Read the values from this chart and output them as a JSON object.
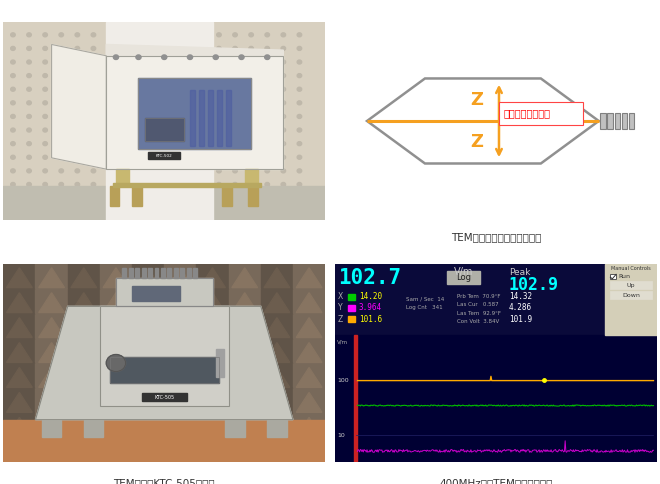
{
  "background_color": "#ffffff",
  "fig_width": 6.6,
  "fig_height": 4.84,
  "dpi": 100,
  "captions": [
    "TEMセル：KTC-502（特）",
    "TEMセル内の電界方向模式図",
    "TEMセル：KTC-505（特）",
    "400MHzでのTEMモードの確認"
  ],
  "diagram": {
    "hex_outline_color": "#888888",
    "arrow_color": "#f5a020",
    "label_z_color": "#f5a020",
    "label_electric_color": "#ff0000",
    "label_z_text": "Z",
    "label_electric_text": "セル内の電界方向"
  },
  "measurement": {
    "bg_color": "#000033",
    "graph_bg": "#000044",
    "header_bg": "#1a1a4a",
    "main_value": "102.7",
    "main_value_color": "#00ffff",
    "unit": "V/m",
    "peak_label": "Peak",
    "peak_value": "102.9",
    "controls_bg": "#d4cfb8",
    "x_color": "#ffff00",
    "y_color": "#ff00ff",
    "z_color": "#ffff00",
    "x_val": "14.20",
    "y_val": "3.964",
    "z_val": "101.6",
    "x_sq": "#00cc00",
    "y_sq": "#ff00ff",
    "z_sq": "#ffaa00",
    "line1_color": "#ffaa00",
    "line2_color": "#00bb00",
    "line3_color": "#cc00cc",
    "grid_color": "#1a1a6a",
    "left_bar_color": "#cc0000",
    "peak_x": "14.32",
    "peak_y": "4.286",
    "peak_z": "101.9"
  }
}
